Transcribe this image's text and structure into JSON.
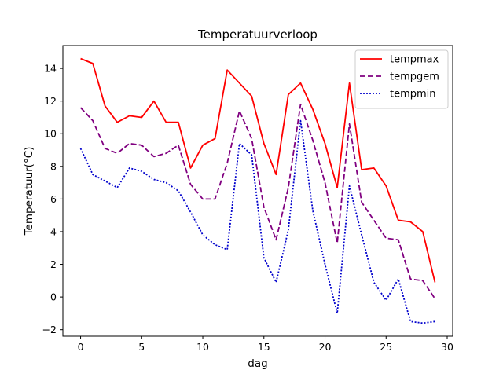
{
  "chart_data": {
    "type": "line",
    "title": "Temperatuurverloop",
    "xlabel": "dag",
    "ylabel": "Temperatuur(°C)",
    "xlim": [
      -1.45,
      30.45
    ],
    "ylim": [
      -2.4,
      15.4
    ],
    "xticks": [
      0,
      5,
      10,
      15,
      20,
      25,
      30
    ],
    "yticks": [
      -2,
      0,
      2,
      4,
      6,
      8,
      10,
      12,
      14
    ],
    "grid": false,
    "legend_position": "top-right",
    "x": [
      0,
      1,
      2,
      3,
      4,
      5,
      6,
      7,
      8,
      9,
      10,
      11,
      12,
      13,
      14,
      15,
      16,
      17,
      18,
      19,
      20,
      21,
      22,
      23,
      24,
      25,
      26,
      27,
      28,
      29
    ],
    "series": [
      {
        "name": "tempmax",
        "color": "#ff0000",
        "style": "solid",
        "values": [
          14.6,
          14.3,
          11.7,
          10.7,
          11.1,
          11.0,
          12.0,
          10.7,
          10.7,
          7.9,
          9.3,
          9.7,
          13.9,
          13.1,
          12.3,
          9.4,
          7.5,
          12.4,
          13.1,
          11.5,
          9.4,
          6.7,
          13.1,
          7.8,
          7.9,
          6.8,
          4.7,
          4.6,
          4.0,
          0.9
        ]
      },
      {
        "name": "tempgem",
        "color": "#800080",
        "style": "dashed",
        "values": [
          11.6,
          10.8,
          9.1,
          8.8,
          9.4,
          9.3,
          8.6,
          8.8,
          9.3,
          6.9,
          6.0,
          6.0,
          8.2,
          11.4,
          9.7,
          5.5,
          3.5,
          6.7,
          11.8,
          9.6,
          7.0,
          3.3,
          10.6,
          5.8,
          4.7,
          3.6,
          3.5,
          1.1,
          1.0,
          -0.1
        ]
      },
      {
        "name": "tempmin",
        "color": "#0000cc",
        "style": "dotted",
        "values": [
          9.1,
          7.5,
          7.1,
          6.7,
          7.9,
          7.7,
          7.2,
          7.0,
          6.5,
          5.2,
          3.8,
          3.2,
          2.9,
          9.4,
          8.7,
          2.4,
          0.9,
          4.1,
          10.8,
          5.3,
          2.0,
          -1.0,
          6.8,
          3.8,
          0.9,
          -0.2,
          1.1,
          -1.5,
          -1.6,
          -1.5
        ]
      }
    ]
  }
}
